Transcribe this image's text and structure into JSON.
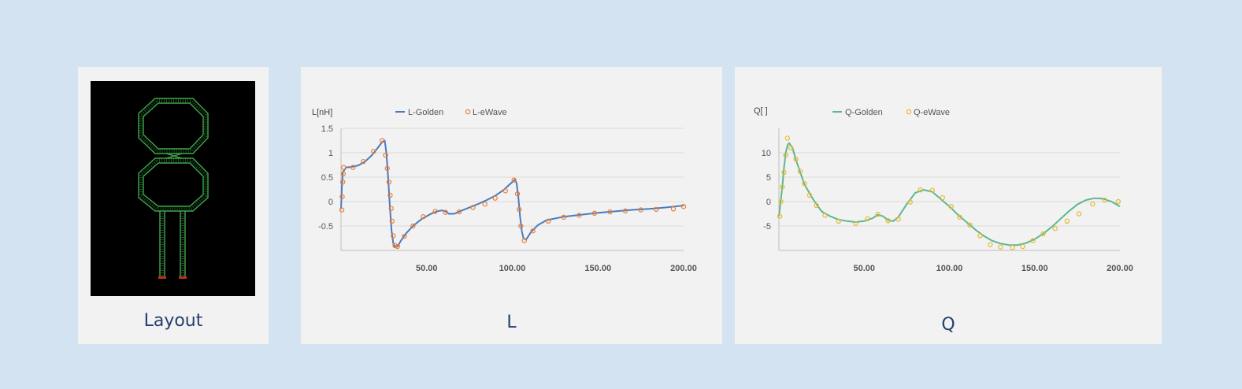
{
  "cards": {
    "layout": {
      "label": "Layout"
    },
    "l": {
      "label": "L"
    },
    "q": {
      "label": "Q"
    }
  },
  "colors": {
    "background": "#d3e3f1",
    "card": "#f2f2f2",
    "label": "#23406e",
    "l_golden": "#4a7bbf",
    "l_ewave": "#ed7d31",
    "q_golden": "#5cb88f",
    "q_ewave": "#e8b830",
    "trace": "#3fa84a"
  },
  "chart_data": [
    {
      "id": "l-chart",
      "type": "line",
      "ylabel": "L[nH]",
      "xlabel": "",
      "xlim": [
        0,
        200
      ],
      "ylim": [
        -1,
        1.5
      ],
      "yticks": [
        1.5,
        1,
        0.5,
        0,
        -0.5
      ],
      "ytick_labels": [
        "1.5",
        "1",
        "0.5",
        "0",
        "-0.5"
      ],
      "xticks": [
        50,
        100,
        150,
        200
      ],
      "xtick_labels": [
        "50.00",
        "100.00",
        "150.00",
        "200.00"
      ],
      "grid": true,
      "legend": "top",
      "series": [
        {
          "name": "L-Golden",
          "style": "line",
          "x": [
            0,
            0.5,
            1,
            3,
            6,
            10,
            14,
            18,
            21,
            24,
            25.5,
            26.5,
            27.5,
            28.5,
            29.5,
            30.5,
            31.5,
            33,
            35,
            38,
            42,
            47,
            52,
            56,
            59,
            61,
            63,
            66,
            70,
            75,
            80,
            85,
            90,
            95,
            99,
            101.5,
            102.5,
            103.5,
            104.5,
            105.5,
            106.5,
            108,
            111,
            115,
            120,
            130,
            140,
            150,
            160,
            170,
            180,
            190,
            200
          ],
          "y": [
            -0.15,
            0.3,
            0.6,
            0.7,
            0.71,
            0.74,
            0.82,
            0.95,
            1.08,
            1.22,
            1.25,
            1.0,
            0.5,
            -0.1,
            -0.6,
            -0.85,
            -0.94,
            -0.92,
            -0.8,
            -0.65,
            -0.5,
            -0.36,
            -0.26,
            -0.2,
            -0.18,
            -0.2,
            -0.25,
            -0.25,
            -0.19,
            -0.12,
            -0.05,
            0.03,
            0.12,
            0.24,
            0.37,
            0.45,
            0.38,
            0.1,
            -0.3,
            -0.6,
            -0.75,
            -0.78,
            -0.62,
            -0.48,
            -0.38,
            -0.31,
            -0.27,
            -0.23,
            -0.2,
            -0.17,
            -0.15,
            -0.12,
            -0.08
          ]
        },
        {
          "name": "L-eWave",
          "style": "marker",
          "x": [
            0.5,
            0.7,
            1,
            1.3,
            1.5,
            7,
            13,
            19,
            24,
            26,
            27,
            28,
            28.7,
            29.3,
            29.8,
            30.5,
            31.5,
            33,
            37,
            42,
            48,
            55,
            61,
            69,
            77,
            84,
            90,
            96,
            101,
            103,
            104,
            105,
            107,
            112,
            121,
            130,
            139,
            148,
            157,
            166,
            175,
            184,
            194,
            200
          ],
          "y": [
            -0.17,
            0.1,
            0.4,
            0.57,
            0.7,
            0.7,
            0.82,
            1.03,
            1.25,
            0.95,
            0.68,
            0.4,
            0.13,
            -0.14,
            -0.4,
            -0.7,
            -0.9,
            -0.92,
            -0.71,
            -0.5,
            -0.31,
            -0.2,
            -0.22,
            -0.21,
            -0.12,
            -0.05,
            0.07,
            0.22,
            0.44,
            0.16,
            -0.16,
            -0.5,
            -0.8,
            -0.6,
            -0.4,
            -0.32,
            -0.28,
            -0.24,
            -0.21,
            -0.19,
            -0.17,
            -0.16,
            -0.15,
            -0.1
          ]
        }
      ]
    },
    {
      "id": "q-chart",
      "type": "line",
      "ylabel": "Q[ ]",
      "xlabel": "",
      "xlim": [
        0,
        200
      ],
      "ylim": [
        -10,
        15
      ],
      "yticks": [
        10,
        5,
        0,
        -5
      ],
      "ytick_labels": [
        "10",
        "5",
        "0",
        "-5"
      ],
      "xticks": [
        50,
        100,
        150,
        200
      ],
      "xtick_labels": [
        "50.00",
        "100.00",
        "150.00",
        "200.00"
      ],
      "grid": true,
      "legend": "top",
      "series": [
        {
          "name": "Q-Golden",
          "style": "line",
          "x": [
            0,
            1,
            2,
            3,
            4,
            5,
            6,
            8,
            10,
            12,
            15,
            20,
            25,
            30,
            35,
            40,
            45,
            50,
            55,
            58,
            61,
            64,
            67,
            70,
            75,
            80,
            85,
            90,
            95,
            100,
            105,
            110,
            115,
            120,
            125,
            130,
            135,
            140,
            145,
            150,
            155,
            160,
            165,
            170,
            175,
            180,
            185,
            190,
            195,
            200
          ],
          "y": [
            -3,
            0,
            3,
            7,
            10,
            11.5,
            12,
            11,
            8.5,
            6.5,
            3.5,
            0.5,
            -2,
            -3,
            -3.7,
            -4,
            -4.2,
            -4,
            -3.4,
            -2.7,
            -3,
            -3.8,
            -4,
            -3.2,
            -0.5,
            1.8,
            2.4,
            2,
            0.5,
            -1,
            -2.7,
            -4.2,
            -5.7,
            -7,
            -8,
            -8.6,
            -8.9,
            -8.9,
            -8.5,
            -7.7,
            -6.6,
            -5.2,
            -3.6,
            -2,
            -0.6,
            0.3,
            0.7,
            0.6,
            0,
            -1
          ]
        },
        {
          "name": "Q-eWave",
          "style": "marker",
          "x": [
            0.5,
            1.2,
            2,
            3,
            4,
            5,
            7,
            10,
            12.5,
            15,
            18,
            22,
            27,
            35,
            45,
            52,
            58,
            64,
            70,
            77,
            83,
            90,
            96,
            101,
            106,
            112,
            118,
            124,
            130,
            137,
            143,
            149,
            155,
            162,
            169,
            176,
            184,
            191,
            199
          ],
          "y": [
            -3,
            0,
            3,
            6,
            9.5,
            13,
            11,
            8.7,
            6.2,
            3.7,
            1.3,
            -0.8,
            -2.8,
            -4,
            -4.5,
            -3.5,
            -2.6,
            -3.9,
            -3.6,
            -0.1,
            2.4,
            2.3,
            0.8,
            -1,
            -3.2,
            -4.8,
            -7,
            -8.8,
            -9.3,
            -9.4,
            -9.2,
            -8,
            -6.6,
            -5.5,
            -4,
            -2.5,
            -0.5,
            0.3,
            0
          ]
        }
      ]
    }
  ]
}
